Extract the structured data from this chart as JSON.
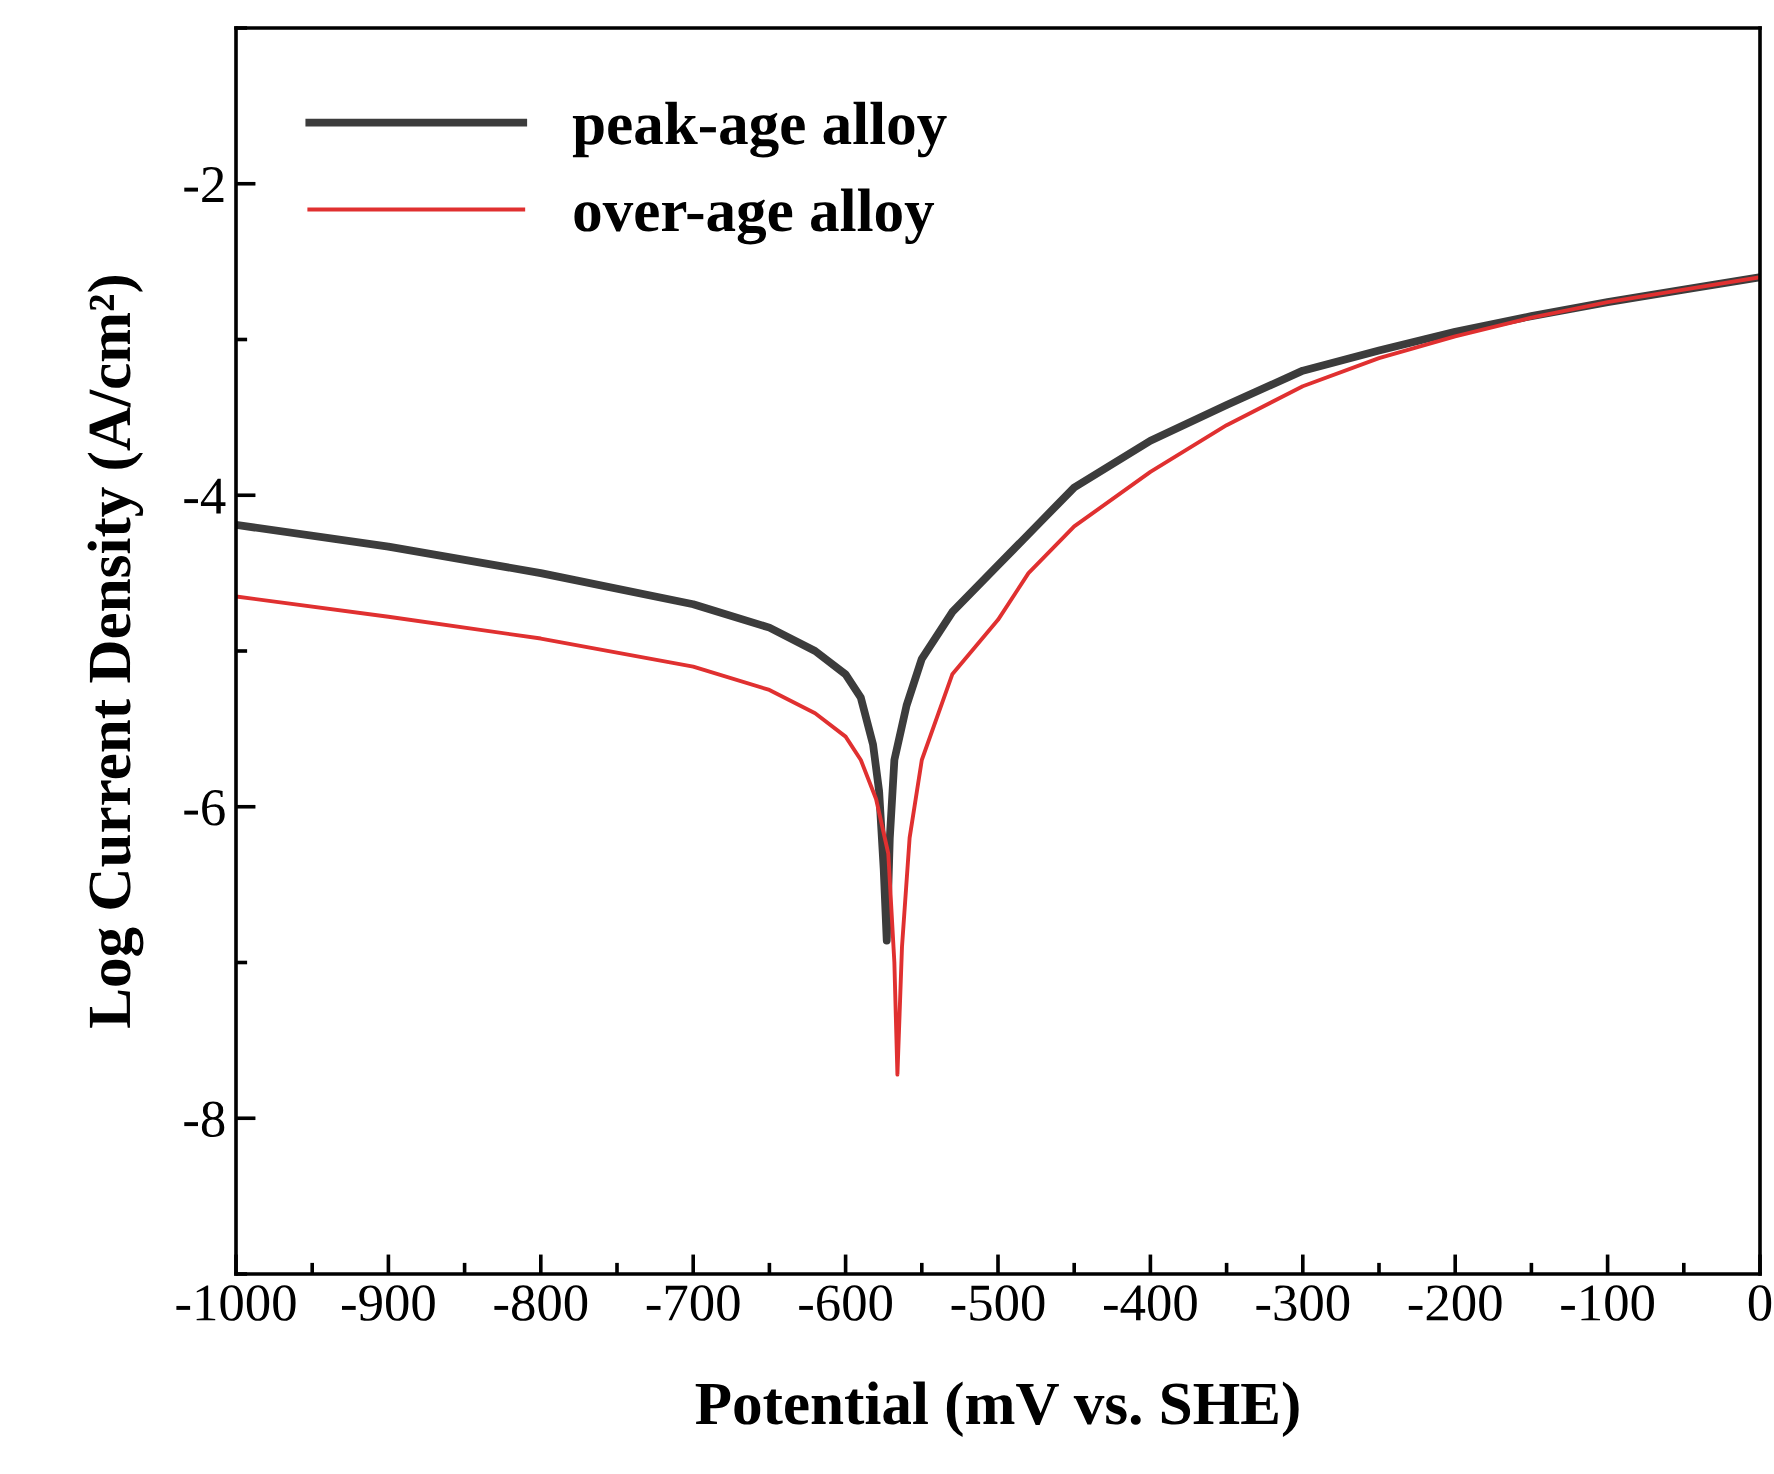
{
  "chart_data": {
    "type": "line",
    "xlabel": "Potential (mV vs. SHE)",
    "ylabel": "Log Current Density (A/cm²)",
    "xlim": [
      -1000,
      0
    ],
    "ylim": [
      -9,
      -1
    ],
    "xticks": [
      -1000,
      -900,
      -800,
      -700,
      -600,
      -500,
      -400,
      -300,
      -200,
      -100,
      0
    ],
    "yticks": [
      {
        "value": -8,
        "label": "-8"
      },
      {
        "value": -6,
        "label": "-6"
      },
      {
        "value": -4,
        "label": "-4"
      },
      {
        "value": -2,
        "label": "-2"
      }
    ],
    "grid": false,
    "legend": "top left",
    "marker": "none",
    "line_style": "solid",
    "series": [
      {
        "name": "peak-age alloy",
        "color": "#3c3c3c",
        "x": [
          -1000,
          -900,
          -800,
          -700,
          -650,
          -620,
          -600,
          -590,
          -582,
          -578,
          -575,
          -573,
          -571,
          -568,
          -560,
          -550,
          -530,
          -500,
          -470,
          -450,
          -400,
          -350,
          -300,
          -250,
          -200,
          -150,
          -100,
          -50,
          0
        ],
        "values": [
          -4.19,
          -4.33,
          -4.5,
          -4.7,
          -4.85,
          -5.0,
          -5.15,
          -5.3,
          -5.6,
          -5.9,
          -6.4,
          -6.86,
          -6.2,
          -5.7,
          -5.35,
          -5.05,
          -4.75,
          -4.45,
          -4.15,
          -3.95,
          -3.65,
          -3.42,
          -3.2,
          -3.07,
          -2.95,
          -2.85,
          -2.76,
          -2.68,
          -2.6
        ]
      },
      {
        "name": "over-age alloy",
        "color": "#e03030",
        "x": [
          -1000,
          -900,
          -800,
          -700,
          -650,
          -620,
          -600,
          -590,
          -580,
          -572,
          -568,
          -566,
          -563,
          -558,
          -550,
          -530,
          -500,
          -480,
          -450,
          -400,
          -350,
          -300,
          -250,
          -200,
          -150,
          -100,
          -50,
          0
        ],
        "values": [
          -4.65,
          -4.78,
          -4.92,
          -5.1,
          -5.25,
          -5.4,
          -5.55,
          -5.7,
          -5.95,
          -6.3,
          -7.0,
          -7.72,
          -6.9,
          -6.2,
          -5.7,
          -5.15,
          -4.8,
          -4.5,
          -4.2,
          -3.85,
          -3.55,
          -3.3,
          -3.12,
          -2.98,
          -2.86,
          -2.76,
          -2.68,
          -2.6
        ]
      }
    ]
  }
}
